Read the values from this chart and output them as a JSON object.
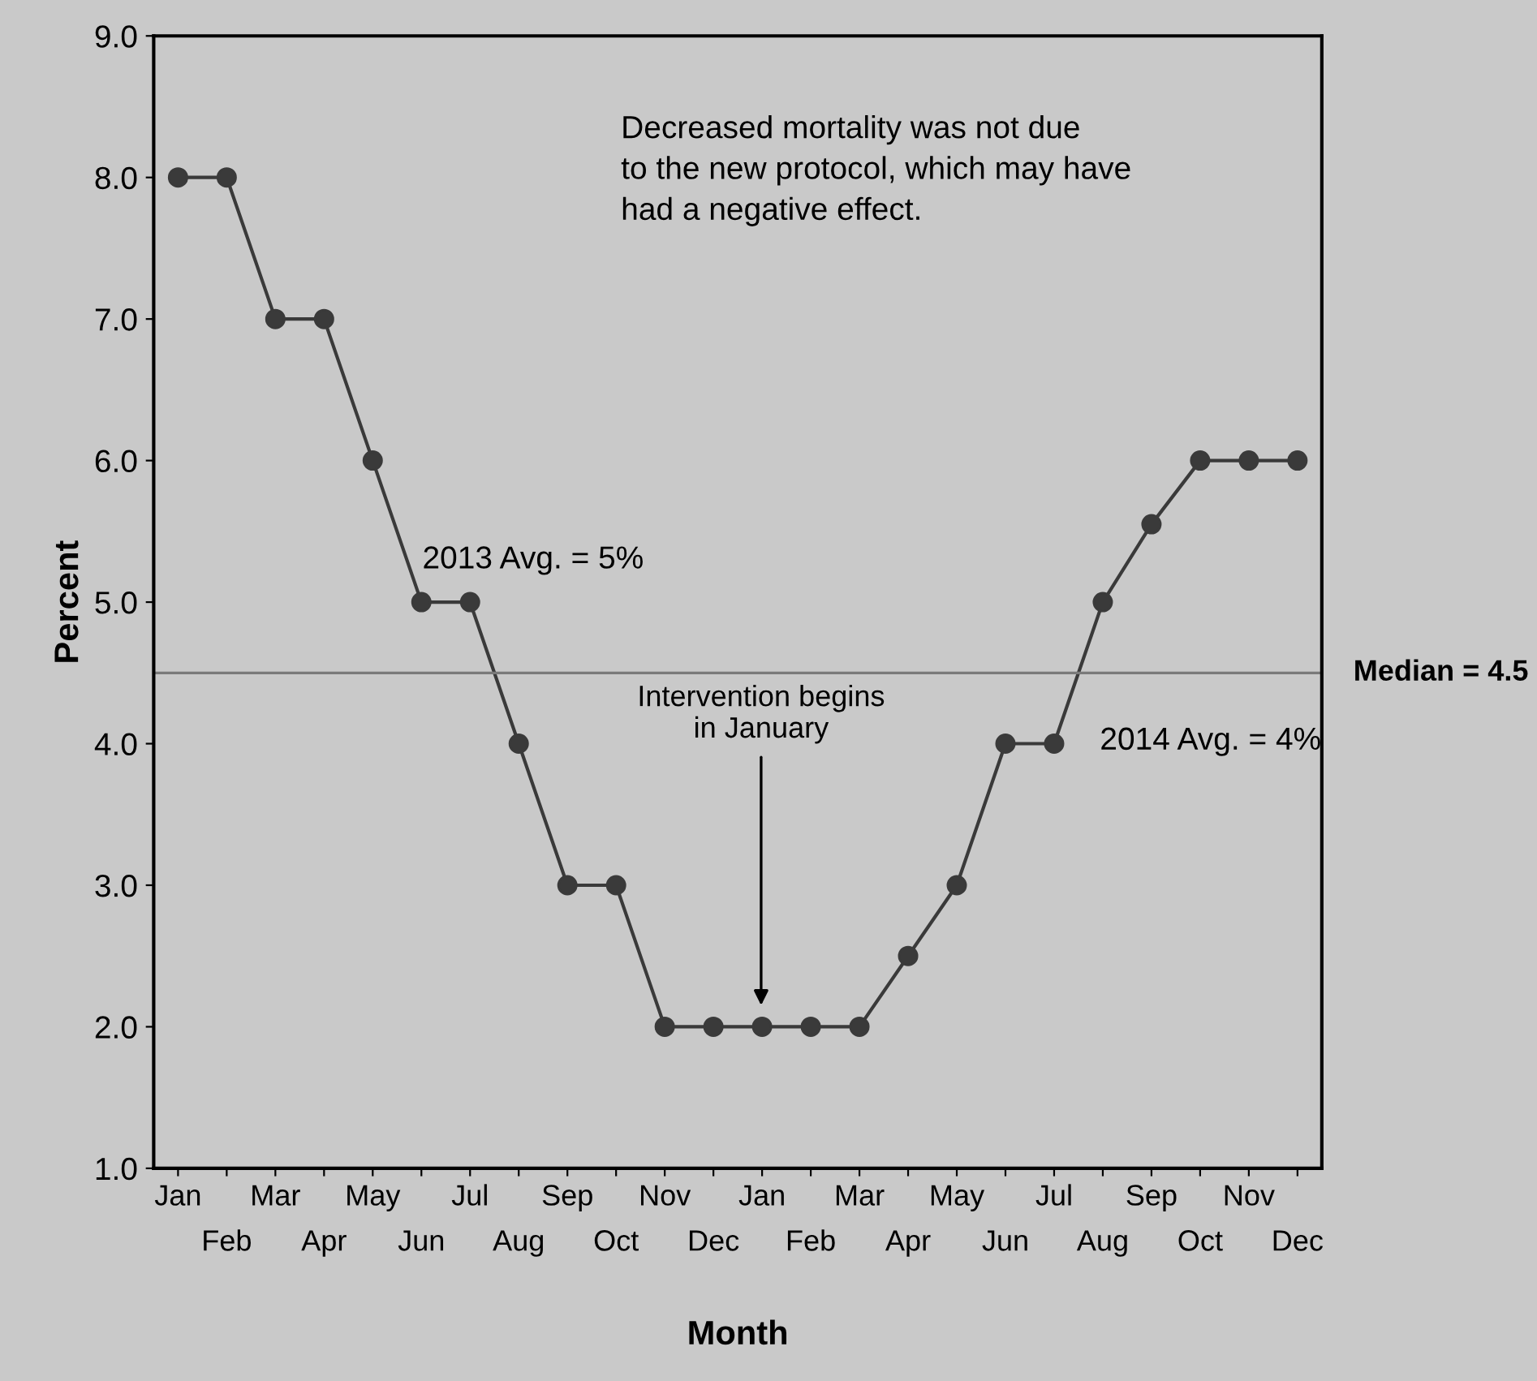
{
  "chart_data": {
    "type": "line",
    "xlabel": "Month",
    "ylabel": "Percent",
    "categories": [
      "Jan",
      "Feb",
      "Mar",
      "Apr",
      "May",
      "Jun",
      "Jul",
      "Aug",
      "Sep",
      "Oct",
      "Nov",
      "Dec",
      "Jan",
      "Feb",
      "Mar",
      "Apr",
      "May",
      "Jun",
      "Jul",
      "Aug",
      "Sep",
      "Oct",
      "Nov",
      "Dec"
    ],
    "series": [
      {
        "color": "#3a3a3a",
        "values": [
          8,
          8,
          7,
          7,
          6,
          5,
          5,
          4,
          3,
          3,
          2,
          2,
          2,
          2,
          2,
          2.5,
          3,
          4,
          4,
          5,
          5.55,
          6,
          6,
          6
        ]
      }
    ],
    "ylim": [
      1,
      9
    ],
    "yticks": [
      {
        "value": 1,
        "label": "1.0"
      },
      {
        "value": 2,
        "label": "2.0"
      },
      {
        "value": 3,
        "label": "3.0"
      },
      {
        "value": 4,
        "label": "4.0"
      },
      {
        "value": 5,
        "label": "5.0"
      },
      {
        "value": 6,
        "label": "6.0"
      },
      {
        "value": 7,
        "label": "7.0"
      },
      {
        "value": 8,
        "label": "8.0"
      },
      {
        "value": 9,
        "label": "9.0"
      }
    ],
    "marker": "circle",
    "line_style": "solid",
    "grid": false,
    "legend": false,
    "ref_lines": [
      {
        "axis": "y",
        "value": 4.5,
        "label": "Median = 4.5",
        "color": "#7a7a7a"
      }
    ],
    "annotations": [
      "Decreased mortality was not due\nto the new protocol, which may have\nhad a negative effect.",
      "2013 Avg. = 5%",
      "2014 Avg. = 4%",
      "Intervention begins\nin January"
    ]
  }
}
